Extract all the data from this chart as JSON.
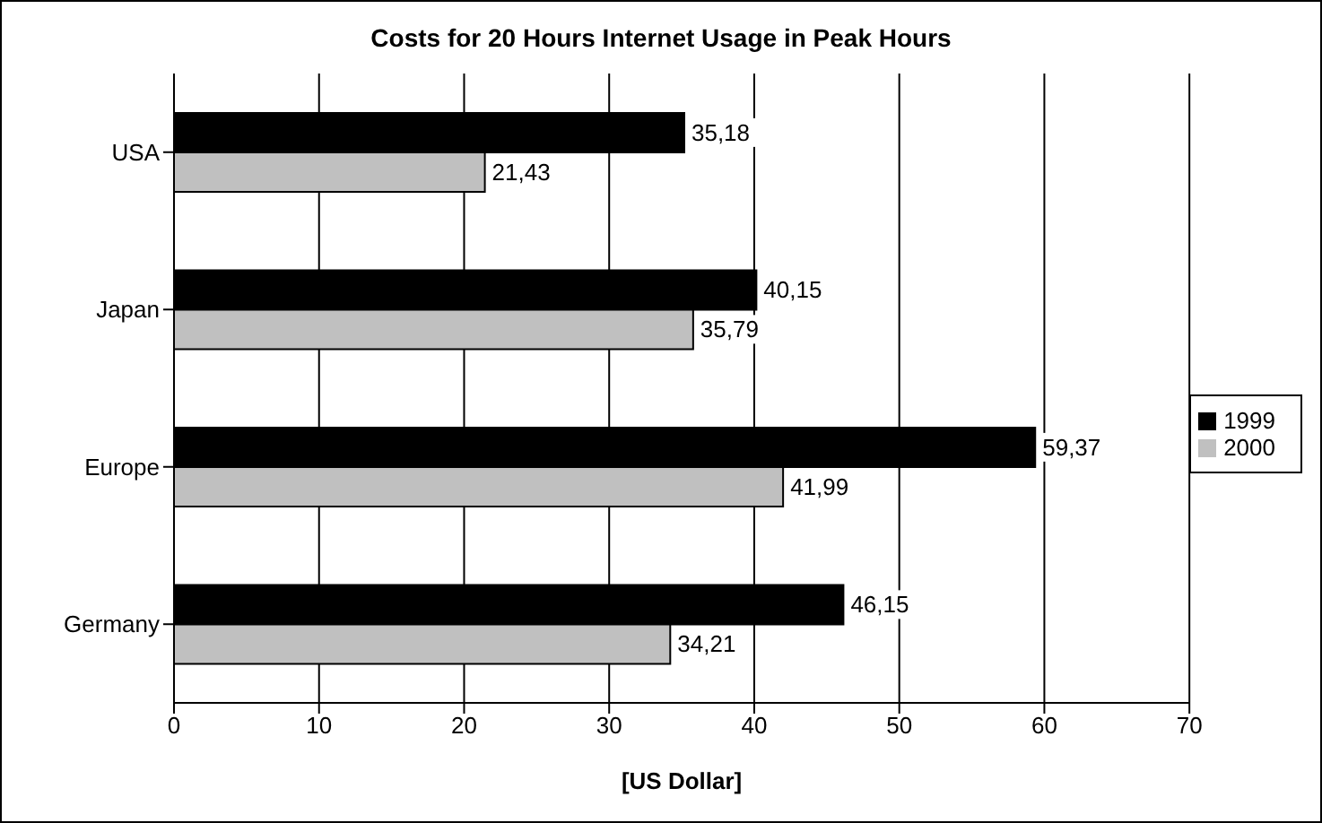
{
  "chart_data": {
    "type": "bar",
    "orientation": "horizontal",
    "title": "Costs for 20 Hours Internet Usage in Peak Hours",
    "xlabel": "[US Dollar]",
    "categories": [
      "USA",
      "Japan",
      "Europe",
      "Germany"
    ],
    "series": [
      {
        "name": "1999",
        "color": "#000000",
        "values": [
          35.18,
          40.15,
          59.37,
          46.15
        ],
        "value_labels": [
          "35,18",
          "40,15",
          "59,37",
          "46,15"
        ]
      },
      {
        "name": "2000",
        "color": "#c0c0c0",
        "values": [
          21.43,
          35.79,
          41.99,
          34.21
        ],
        "value_labels": [
          "21,43",
          "35,79",
          "41,99",
          "34,21"
        ]
      }
    ],
    "xlim": [
      0,
      70
    ],
    "xticks": [
      0,
      10,
      20,
      30,
      40,
      50,
      60,
      70
    ],
    "grid": "x",
    "legend": "right"
  }
}
